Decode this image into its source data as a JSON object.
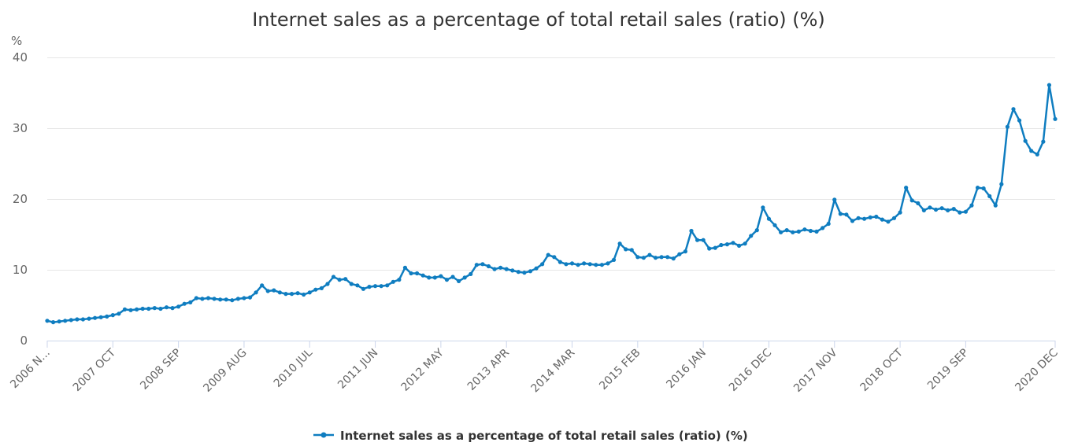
{
  "chart_data": {
    "type": "line",
    "title": "Internet sales as a percentage of total retail sales (ratio) (%)",
    "y_unit": "%",
    "ylim": [
      0,
      40
    ],
    "y_ticks": [
      "0",
      "10",
      "20",
      "30",
      "40"
    ],
    "x_tick_labels": [
      "2006 N...",
      "2007 OCT",
      "2008 SEP",
      "2009 AUG",
      "2010 JUL",
      "2011 JUN",
      "2012 MAY",
      "2013 APR",
      "2014 MAR",
      "2015 FEB",
      "2016 JAN",
      "2016 DEC",
      "2017 NOV",
      "2018 OCT",
      "2019 SEP",
      "2020 DEC"
    ],
    "x_tick_dates": [
      "2006-11",
      "2007-10",
      "2008-09",
      "2009-08",
      "2010-07",
      "2011-06",
      "2012-05",
      "2013-04",
      "2014-03",
      "2015-02",
      "2016-01",
      "2016-12",
      "2017-11",
      "2018-10",
      "2019-09",
      "2020-12"
    ],
    "x_start": "2006-11",
    "x_end": "2020-12",
    "grid": true,
    "legend_position": "bottom-center",
    "color": "#0f7dc0",
    "series": [
      {
        "name": "Internet sales as a percentage of total retail sales (ratio) (%)",
        "values": [
          2.8,
          2.6,
          2.7,
          2.8,
          2.9,
          3.0,
          3.0,
          3.1,
          3.2,
          3.3,
          3.4,
          3.6,
          3.8,
          4.4,
          4.3,
          4.4,
          4.5,
          4.5,
          4.6,
          4.5,
          4.7,
          4.6,
          4.8,
          5.2,
          5.4,
          6.0,
          5.9,
          6.0,
          5.9,
          5.8,
          5.8,
          5.7,
          5.9,
          6.0,
          6.1,
          6.8,
          7.8,
          7.0,
          7.1,
          6.8,
          6.6,
          6.6,
          6.7,
          6.5,
          6.8,
          7.2,
          7.4,
          8.0,
          9.0,
          8.6,
          8.7,
          8.0,
          7.8,
          7.3,
          7.6,
          7.7,
          7.7,
          7.8,
          8.3,
          8.6,
          10.3,
          9.5,
          9.5,
          9.2,
          8.9,
          8.9,
          9.1,
          8.6,
          9.0,
          8.4,
          8.9,
          9.4,
          10.7,
          10.8,
          10.5,
          10.1,
          10.3,
          10.1,
          9.9,
          9.7,
          9.6,
          9.8,
          10.2,
          10.8,
          12.1,
          11.8,
          11.1,
          10.8,
          10.9,
          10.7,
          10.9,
          10.8,
          10.7,
          10.7,
          10.9,
          11.4,
          13.7,
          12.9,
          12.8,
          11.8,
          11.7,
          12.1,
          11.7,
          11.8,
          11.8,
          11.6,
          12.2,
          12.6,
          15.5,
          14.2,
          14.2,
          13.0,
          13.1,
          13.5,
          13.6,
          13.8,
          13.4,
          13.7,
          14.8,
          15.6,
          18.8,
          17.2,
          16.3,
          15.3,
          15.6,
          15.3,
          15.4,
          15.7,
          15.5,
          15.4,
          15.9,
          16.5,
          19.9,
          17.9,
          17.8,
          16.9,
          17.3,
          17.2,
          17.4,
          17.5,
          17.1,
          16.8,
          17.3,
          18.1,
          21.6,
          19.8,
          19.4,
          18.4,
          18.8,
          18.5,
          18.7,
          18.4,
          18.6,
          18.1,
          18.2,
          19.1,
          21.6,
          21.5,
          20.4,
          19.1,
          22.1,
          30.2,
          32.7,
          31.1,
          28.2,
          26.8,
          26.3,
          28.1,
          36.1,
          31.3
        ]
      }
    ]
  }
}
